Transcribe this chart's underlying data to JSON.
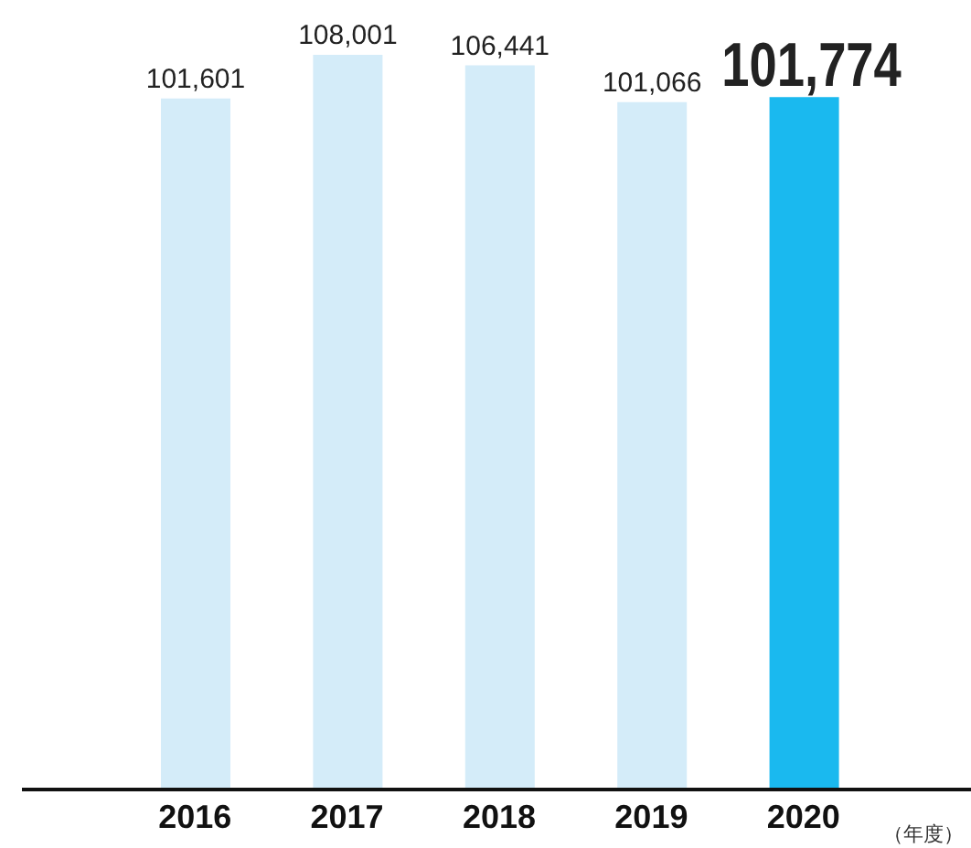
{
  "chart_data": {
    "type": "bar",
    "xlabel": "（年度）",
    "categories": [
      "2016",
      "2017",
      "2018",
      "2019",
      "2020"
    ],
    "values": [
      101601,
      108001,
      106441,
      101066,
      101774
    ],
    "colors": [
      "#d4ecf9",
      "#d4ecf9",
      "#d4ecf9",
      "#d4ecf9",
      "#1ab9ef"
    ],
    "value_labels": [
      "101,601",
      "108,001",
      "106,441",
      "101,066",
      "101,774"
    ],
    "grid": false,
    "legend": false
  }
}
